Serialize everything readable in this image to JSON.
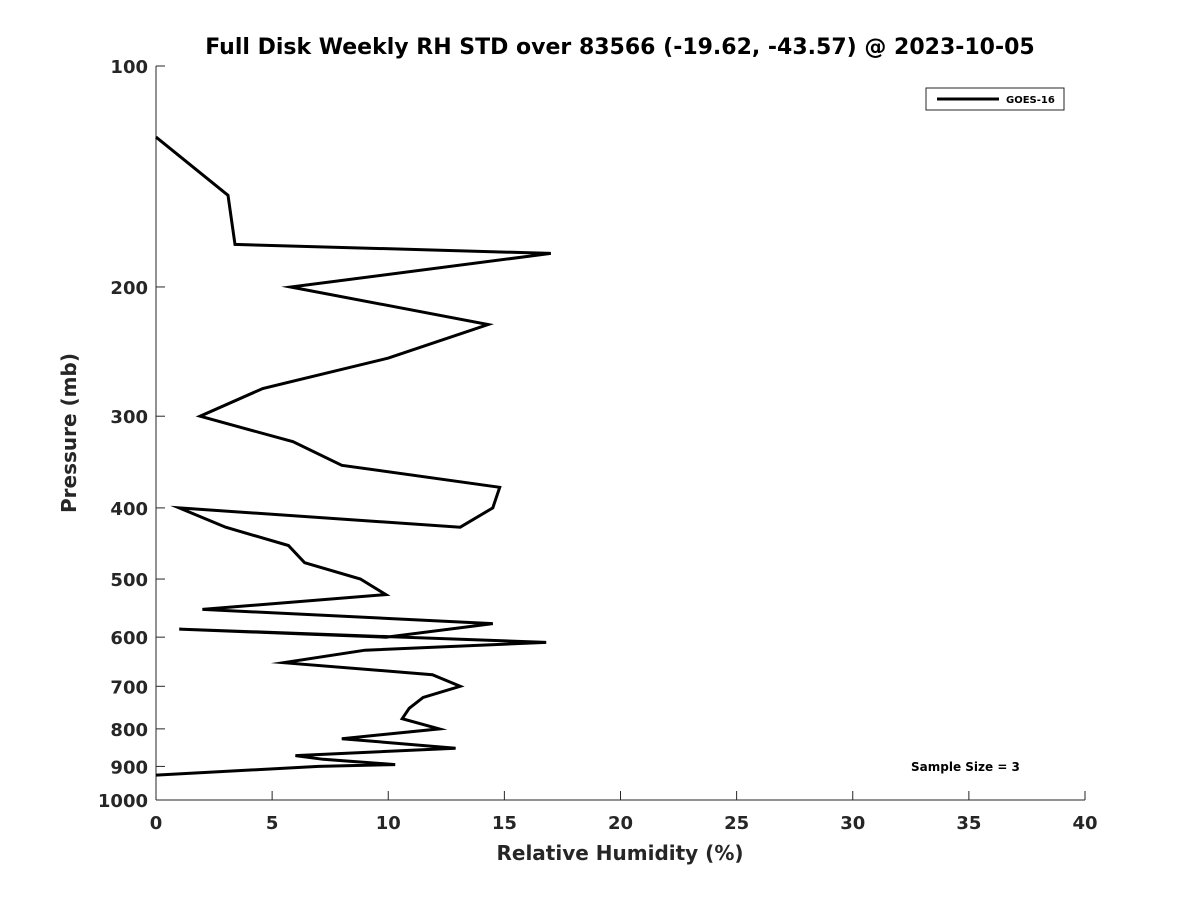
{
  "chart_data": {
    "type": "line",
    "title": "Full Disk Weekly RH STD over 83566 (-19.62, -43.57) @ 2023-10-05",
    "xlabel": "Relative Humidity (%)",
    "ylabel": "Pressure (mb)",
    "xlim": [
      0,
      40
    ],
    "ylim": [
      100,
      1000
    ],
    "yscale": "log",
    "y_reversed": true,
    "grid": false,
    "legend_position": "top-right",
    "x_ticks": [
      0,
      5,
      10,
      15,
      20,
      25,
      30,
      35,
      40
    ],
    "x_tick_labels": [
      "0",
      "5",
      "10",
      "15",
      "20",
      "25",
      "30",
      "35",
      "40"
    ],
    "y_ticks": [
      100,
      200,
      300,
      400,
      500,
      600,
      700,
      800,
      900,
      1000
    ],
    "y_tick_labels": [
      "100",
      "200",
      "300",
      "400",
      "500",
      "600",
      "700",
      "800",
      "900",
      "1000"
    ],
    "series": [
      {
        "name": "GOES-16",
        "color": "#000000",
        "points": [
          [
            0.0,
            125
          ],
          [
            3.1,
            150
          ],
          [
            3.4,
            175
          ],
          [
            17.0,
            180
          ],
          [
            5.8,
            200
          ],
          [
            14.3,
            225
          ],
          [
            10.0,
            250
          ],
          [
            4.6,
            275
          ],
          [
            1.9,
            300
          ],
          [
            5.9,
            325
          ],
          [
            8.0,
            350
          ],
          [
            14.8,
            375
          ],
          [
            14.5,
            400
          ],
          [
            13.1,
            425
          ],
          [
            1.0,
            400
          ],
          [
            3.0,
            425
          ],
          [
            5.7,
            450
          ],
          [
            6.4,
            475
          ],
          [
            8.8,
            500
          ],
          [
            9.9,
            525
          ],
          [
            2.0,
            550
          ],
          [
            14.5,
            575
          ],
          [
            9.9,
            600
          ],
          [
            1.0,
            585
          ],
          [
            16.8,
            610
          ],
          [
            9.0,
            625
          ],
          [
            5.5,
            650
          ],
          [
            11.9,
            675
          ],
          [
            13.1,
            700
          ],
          [
            11.5,
            725
          ],
          [
            10.9,
            750
          ],
          [
            10.6,
            775
          ],
          [
            12.2,
            800
          ],
          [
            8.0,
            825
          ],
          [
            12.9,
            850
          ],
          [
            6.0,
            870
          ],
          [
            7.2,
            880
          ],
          [
            10.3,
            895
          ],
          [
            7.0,
            900
          ],
          [
            0.0,
            925
          ]
        ]
      }
    ],
    "annotations": [
      "Sample Size = 3"
    ]
  }
}
